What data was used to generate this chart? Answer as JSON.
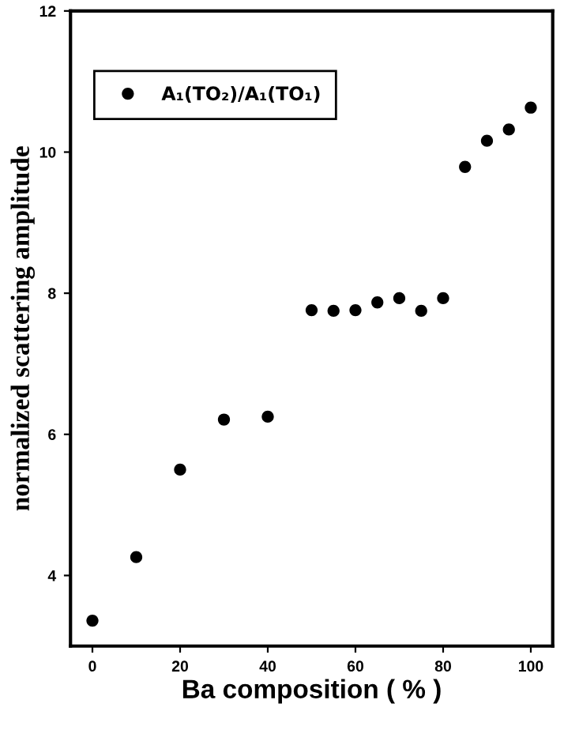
{
  "chart_data": {
    "type": "scatter",
    "xlabel": "Ba composition ( % )",
    "ylabel": "normalized scattering amplitude",
    "x": [
      0,
      10,
      20,
      30,
      40,
      50,
      55,
      60,
      65,
      70,
      75,
      80,
      85,
      90,
      95,
      100
    ],
    "series": [
      {
        "name": "A₁(TO₂)/A₁(TO₁)",
        "color": "#000000",
        "values": [
          3.36,
          4.26,
          5.5,
          6.21,
          6.25,
          7.76,
          7.75,
          7.76,
          7.87,
          7.93,
          7.75,
          7.93,
          9.79,
          10.16,
          10.32,
          10.63
        ]
      }
    ],
    "xlim": [
      -5,
      105
    ],
    "xticks": [
      0,
      20,
      40,
      60,
      80,
      100
    ],
    "ylim": [
      3,
      12
    ],
    "yticks": [
      4,
      6,
      8,
      10,
      12
    ],
    "marker": "circle",
    "grid": false,
    "legend": "top left"
  }
}
